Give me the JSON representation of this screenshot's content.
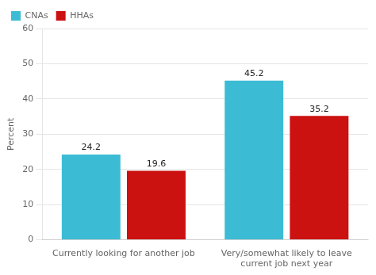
{
  "chart_data": {
    "type": "bar",
    "categories": [
      "Currently looking for another job",
      "Very/somewhat likely to leave\ncurrent job next year"
    ],
    "series": [
      {
        "name": "CNAs",
        "color": "#3BBCD4",
        "values": [
          24.2,
          45.2
        ]
      },
      {
        "name": "HHAs",
        "color": "#CC1111",
        "values": [
          19.6,
          35.2
        ]
      }
    ],
    "ylabel": "Percent",
    "ylim": [
      0,
      60
    ],
    "yticks": [
      0,
      10,
      20,
      30,
      40,
      50,
      60
    ],
    "grid": true,
    "legend": "upper left",
    "data_labels": true
  }
}
